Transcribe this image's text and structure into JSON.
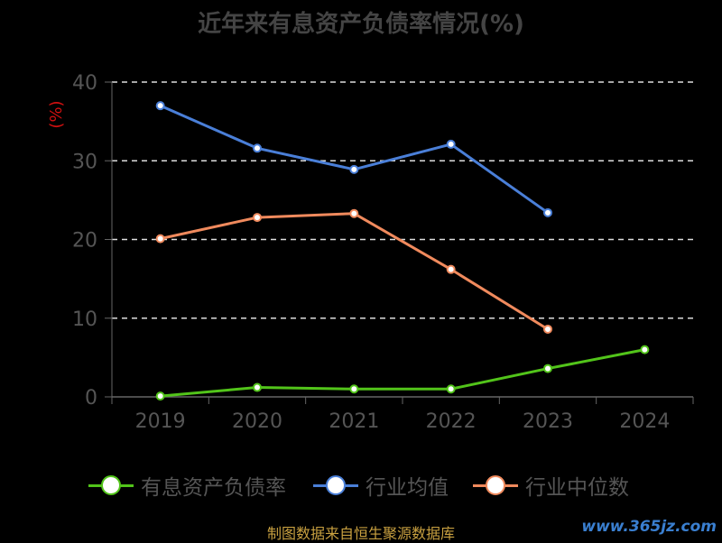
{
  "title": "近年来有息资产负债率情况(%)",
  "source": "制图数据来自恒生聚源数据库",
  "watermark": "www.365jz.com",
  "legend": [
    {
      "label": "有息资产负债率",
      "color": "#52c41a"
    },
    {
      "label": "行业均值",
      "color": "#4a7fd8"
    },
    {
      "label": "行业中位数",
      "color": "#f08a5d"
    }
  ],
  "chart_data": {
    "type": "line",
    "title": "近年来有息资产负债率情况(%)",
    "ylabel": "(%)",
    "x": [
      "2019",
      "2020",
      "2021",
      "2022",
      "2023",
      "2024"
    ],
    "ylim": [
      0,
      40
    ],
    "yticks": [
      0,
      10,
      20,
      30,
      40
    ],
    "grid": true,
    "legend_position": "bottom",
    "series": [
      {
        "name": "有息资产负债率",
        "color": "#52c41a",
        "values": [
          0.1,
          1.2,
          1.0,
          1.0,
          3.6,
          6.0
        ]
      },
      {
        "name": "行业均值",
        "color": "#4a7fd8",
        "values": [
          37.0,
          31.6,
          28.9,
          32.1,
          23.4,
          null
        ]
      },
      {
        "name": "行业中位数",
        "color": "#f08a5d",
        "values": [
          20.1,
          22.8,
          23.3,
          16.2,
          8.6,
          null
        ]
      }
    ]
  }
}
